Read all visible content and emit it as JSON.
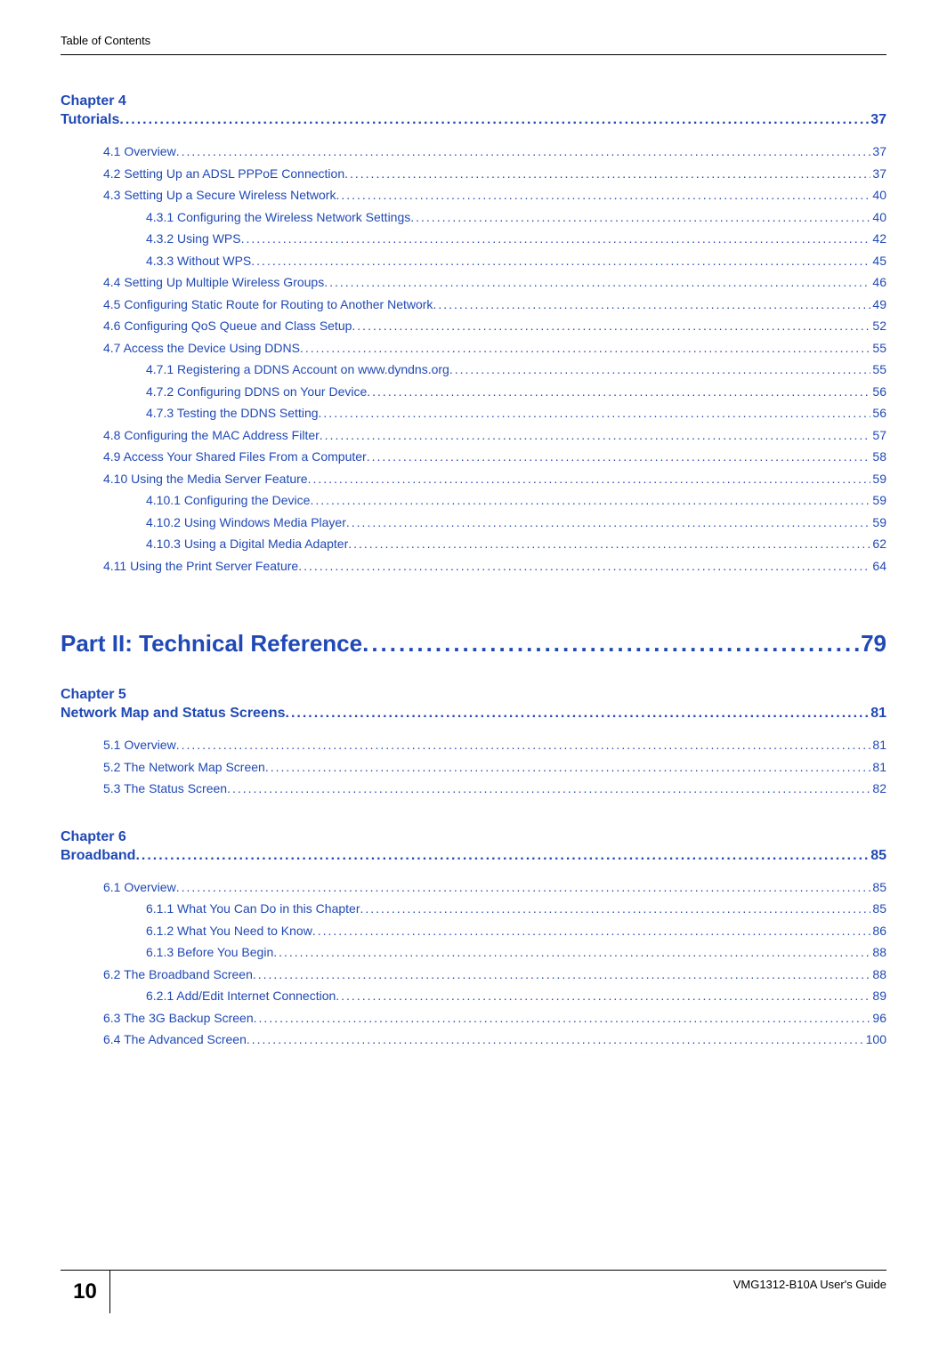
{
  "header": "Table of Contents",
  "chapters": [
    {
      "num": "4",
      "title": "Tutorials",
      "page": "37",
      "sections": [
        {
          "level": 1,
          "label": "4.1 Overview",
          "page": "37"
        },
        {
          "level": 1,
          "label": "4.2 Setting Up an ADSL PPPoE Connection",
          "page": "37"
        },
        {
          "level": 1,
          "label": "4.3 Setting Up a Secure Wireless Network",
          "page": "40"
        },
        {
          "level": 2,
          "label": "4.3.1 Configuring the Wireless Network Settings",
          "page": "40"
        },
        {
          "level": 2,
          "label": "4.3.2 Using WPS",
          "page": "42"
        },
        {
          "level": 2,
          "label": "4.3.3 Without WPS",
          "page": "45"
        },
        {
          "level": 1,
          "label": "4.4 Setting Up Multiple Wireless Groups",
          "page": "46"
        },
        {
          "level": 1,
          "label": "4.5 Configuring Static Route for Routing to Another Network",
          "page": "49"
        },
        {
          "level": 1,
          "label": "4.6 Configuring QoS Queue and Class Setup",
          "page": "52"
        },
        {
          "level": 1,
          "label": "4.7 Access the Device Using DDNS",
          "page": "55"
        },
        {
          "level": 2,
          "label": "4.7.1 Registering a DDNS Account on www.dyndns.org",
          "page": "55"
        },
        {
          "level": 2,
          "label": "4.7.2 Configuring DDNS on Your Device",
          "page": "56"
        },
        {
          "level": 2,
          "label": "4.7.3 Testing the DDNS Setting",
          "page": "56"
        },
        {
          "level": 1,
          "label": "4.8 Configuring the MAC Address Filter",
          "page": "57"
        },
        {
          "level": 1,
          "label": "4.9 Access Your Shared Files From a Computer",
          "page": "58"
        },
        {
          "level": 1,
          "label": "4.10  Using the Media Server Feature",
          "page": "59"
        },
        {
          "level": 2,
          "label": "4.10.1 Configuring the Device",
          "page": "59"
        },
        {
          "level": 2,
          "label": "4.10.2 Using Windows Media Player",
          "page": "59"
        },
        {
          "level": 2,
          "label": "4.10.3 Using a Digital Media Adapter",
          "page": "62"
        },
        {
          "level": 1,
          "label": "4.11 Using the Print Server Feature",
          "page": "64"
        }
      ]
    }
  ],
  "part": {
    "title": "Part II: Technical Reference",
    "page": "79"
  },
  "chapters_after": [
    {
      "num": "5",
      "title": "Network Map and Status Screens",
      "page": "81",
      "sections": [
        {
          "level": 1,
          "label": "5.1 Overview",
          "page": "81"
        },
        {
          "level": 1,
          "label": "5.2 The Network Map Screen",
          "page": "81"
        },
        {
          "level": 1,
          "label": "5.3 The Status Screen",
          "page": "82"
        }
      ]
    },
    {
      "num": "6",
      "title": "Broadband",
      "page": "85",
      "sections": [
        {
          "level": 1,
          "label": "6.1 Overview",
          "page": "85"
        },
        {
          "level": 2,
          "label": "6.1.1 What You Can Do in this Chapter",
          "page": "85"
        },
        {
          "level": 2,
          "label": "6.1.2 What You Need to Know",
          "page": "86"
        },
        {
          "level": 2,
          "label": "6.1.3 Before You Begin",
          "page": "88"
        },
        {
          "level": 1,
          "label": "6.2 The Broadband Screen",
          "page": "88"
        },
        {
          "level": 2,
          "label": "6.2.1 Add/Edit Internet Connection",
          "page": "89"
        },
        {
          "level": 1,
          "label": "6.3 The 3G Backup Screen",
          "page": "96"
        },
        {
          "level": 1,
          "label": "6.4 The Advanced Screen",
          "page": "100"
        }
      ]
    }
  ],
  "footer": {
    "page_number": "10",
    "guide_label": "VMG1312-B10A User's Guide"
  },
  "colors": {
    "link": "#2049b5",
    "text": "#000000",
    "bg": "#ffffff"
  }
}
